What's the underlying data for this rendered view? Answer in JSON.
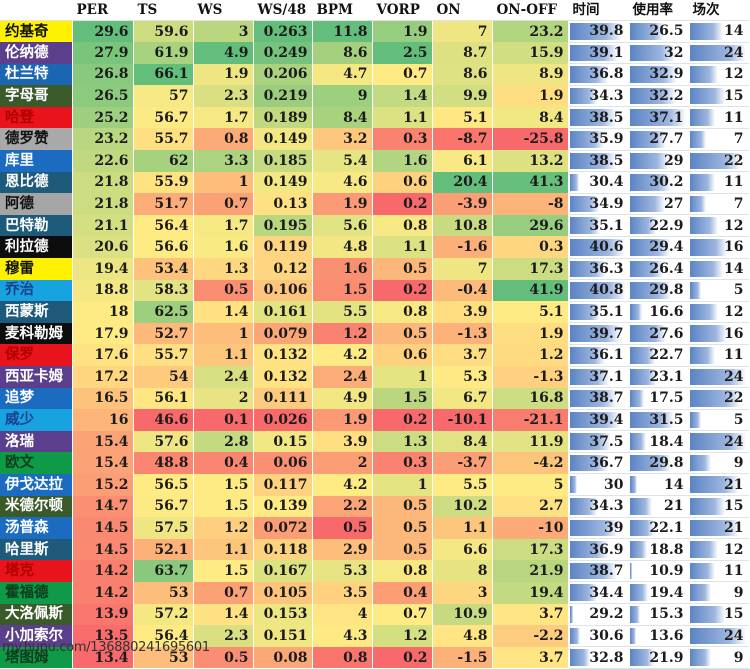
{
  "chart_data": {
    "type": "table",
    "title": "",
    "columns": [
      "",
      "PER",
      "TS",
      "WS",
      "WS/48",
      "BPM",
      "VORP",
      "ON",
      "ON-OFF",
      "时间",
      "使用率",
      "场次"
    ],
    "heatmap_columns": [
      "PER",
      "TS",
      "WS",
      "WS/48",
      "BPM",
      "VORP",
      "ON",
      "ON-OFF"
    ],
    "databar_columns": [
      "时间",
      "使用率",
      "场次"
    ],
    "rows": [
      {
        "name": "约基奇",
        "name_bg": "#fff200",
        "name_fg": "#111111",
        "PER": 29.6,
        "TS": 59.6,
        "WS": 3,
        "WS48": 0.263,
        "BPM": 11.8,
        "VORP": 1.9,
        "ON": 7,
        "ONOFF": 23.2,
        "MIN": 39.8,
        "USG": 26.5,
        "G": 14
      },
      {
        "name": "伦纳德",
        "name_bg": "#5b3f8c",
        "name_fg": "#ffffff",
        "PER": 27.9,
        "TS": 61.9,
        "WS": 4.9,
        "WS48": 0.249,
        "BPM": 8.6,
        "VORP": 2.5,
        "ON": 8.7,
        "ONOFF": 15.9,
        "MIN": 39.1,
        "USG": 32,
        "G": 24
      },
      {
        "name": "杜兰特",
        "name_bg": "#1a66b3",
        "name_fg": "#ffffff",
        "PER": 26.8,
        "TS": 66.1,
        "WS": 1.9,
        "WS48": 0.206,
        "BPM": 4.7,
        "VORP": 0.7,
        "ON": 8.6,
        "ONOFF": 8.9,
        "MIN": 36.8,
        "USG": 32.9,
        "G": 12
      },
      {
        "name": "字母哥",
        "name_bg": "#3a5a2a",
        "name_fg": "#ffffff",
        "PER": 26.5,
        "TS": 57,
        "WS": 2.3,
        "WS48": 0.219,
        "BPM": 9,
        "VORP": 1.4,
        "ON": 9.9,
        "ONOFF": 1.9,
        "MIN": 34.3,
        "USG": 32.2,
        "G": 15
      },
      {
        "name": "哈登",
        "name_bg": "#e8131b",
        "name_fg": "#b00000",
        "PER": 25.2,
        "TS": 56.7,
        "WS": 1.7,
        "WS48": 0.189,
        "BPM": 8.4,
        "VORP": 1.1,
        "ON": 5.1,
        "ONOFF": 8.4,
        "MIN": 38.5,
        "USG": 37.1,
        "G": 11
      },
      {
        "name": "德罗赞",
        "name_bg": "#a9a9a9",
        "name_fg": "#111111",
        "PER": 23.2,
        "TS": 55.7,
        "WS": 0.8,
        "WS48": 0.149,
        "BPM": 3.2,
        "VORP": 0.3,
        "ON": -8.7,
        "ONOFF": -25.8,
        "MIN": 35.9,
        "USG": 27.7,
        "G": 7
      },
      {
        "name": "库里",
        "name_bg": "#1b6cc0",
        "name_fg": "#ffffff",
        "PER": 22.6,
        "TS": 62,
        "WS": 3.3,
        "WS48": 0.185,
        "BPM": 5.4,
        "VORP": 1.6,
        "ON": 6.1,
        "ONOFF": 13.2,
        "MIN": 38.5,
        "USG": 29,
        "G": 22
      },
      {
        "name": "恩比德",
        "name_bg": "#1e5a7a",
        "name_fg": "#ffffff",
        "PER": 21.8,
        "TS": 55.9,
        "WS": 1,
        "WS48": 0.149,
        "BPM": 4.6,
        "VORP": 0.6,
        "ON": 20.4,
        "ONOFF": 41.3,
        "MIN": 30.4,
        "USG": 30.2,
        "G": 11
      },
      {
        "name": "阿德",
        "name_bg": "#a5a5a5",
        "name_fg": "#111111",
        "PER": 21.8,
        "TS": 51.7,
        "WS": 0.7,
        "WS48": 0.13,
        "BPM": 1.9,
        "VORP": 0.2,
        "ON": -3.9,
        "ONOFF": -8,
        "MIN": 34.9,
        "USG": 27,
        "G": 7
      },
      {
        "name": "巴特勒",
        "name_bg": "#1e5a7a",
        "name_fg": "#ffffff",
        "PER": 21.1,
        "TS": 56.4,
        "WS": 1.7,
        "WS48": 0.195,
        "BPM": 5.6,
        "VORP": 0.8,
        "ON": 10.8,
        "ONOFF": 29.6,
        "MIN": 35.1,
        "USG": 22.9,
        "G": 12
      },
      {
        "name": "利拉德",
        "name_bg": "#0d0d0d",
        "name_fg": "#ffffff",
        "PER": 20.6,
        "TS": 56.6,
        "WS": 1.6,
        "WS48": 0.119,
        "BPM": 4.8,
        "VORP": 1.1,
        "ON": -1.6,
        "ONOFF": 0.3,
        "MIN": 40.6,
        "USG": 29.4,
        "G": 16
      },
      {
        "name": "穆雷",
        "name_bg": "#fff200",
        "name_fg": "#111111",
        "PER": 19.4,
        "TS": 53.4,
        "WS": 1.3,
        "WS48": 0.12,
        "BPM": 1.6,
        "VORP": 0.5,
        "ON": 7,
        "ONOFF": 17.3,
        "MIN": 36.3,
        "USG": 26.4,
        "G": 14
      },
      {
        "name": "乔治",
        "name_bg": "#17a3e0",
        "name_fg": "#1d3f8f",
        "PER": 18.8,
        "TS": 58.3,
        "WS": 0.5,
        "WS48": 0.106,
        "BPM": 1.5,
        "VORP": 0.2,
        "ON": -0.4,
        "ONOFF": 41.9,
        "MIN": 40.8,
        "USG": 29.8,
        "G": 5
      },
      {
        "name": "西蒙斯",
        "name_bg": "#1e5a7a",
        "name_fg": "#ffffff",
        "PER": 18,
        "TS": 62.5,
        "WS": 1.4,
        "WS48": 0.161,
        "BPM": 5.5,
        "VORP": 0.8,
        "ON": 3.9,
        "ONOFF": 5.1,
        "MIN": 35.1,
        "USG": 16.6,
        "G": 12
      },
      {
        "name": "麦科勒姆",
        "name_bg": "#0d0d0d",
        "name_fg": "#ffffff",
        "PER": 17.9,
        "TS": 52.7,
        "WS": 1,
        "WS48": 0.079,
        "BPM": 1.2,
        "VORP": 0.5,
        "ON": -1.3,
        "ONOFF": 1.9,
        "MIN": 39.7,
        "USG": 27.6,
        "G": 16
      },
      {
        "name": "保罗",
        "name_bg": "#e8131b",
        "name_fg": "#b00000",
        "PER": 17.6,
        "TS": 55.7,
        "WS": 1.1,
        "WS48": 0.132,
        "BPM": 4.2,
        "VORP": 0.6,
        "ON": 3.7,
        "ONOFF": 1.2,
        "MIN": 36.1,
        "USG": 22.7,
        "G": 11
      },
      {
        "name": "西亚卡姆",
        "name_bg": "#5b3f8c",
        "name_fg": "#ffffff",
        "PER": 17.2,
        "TS": 54,
        "WS": 2.4,
        "WS48": 0.132,
        "BPM": 2.4,
        "VORP": 1,
        "ON": 5.3,
        "ONOFF": -1.3,
        "MIN": 37.1,
        "USG": 23.1,
        "G": 24
      },
      {
        "name": "追梦",
        "name_bg": "#1b6cc0",
        "name_fg": "#ffffff",
        "PER": 16.5,
        "TS": 56.1,
        "WS": 2,
        "WS48": 0.111,
        "BPM": 4.9,
        "VORP": 1.5,
        "ON": 6.7,
        "ONOFF": 16.8,
        "MIN": 38.7,
        "USG": 17.5,
        "G": 22
      },
      {
        "name": "威少",
        "name_bg": "#17a3e0",
        "name_fg": "#1d3f8f",
        "PER": 16,
        "TS": 46.6,
        "WS": 0.1,
        "WS48": 0.026,
        "BPM": 1.9,
        "VORP": 0.2,
        "ON": -10.1,
        "ONOFF": -21.1,
        "MIN": 39.4,
        "USG": 31.5,
        "G": 5
      },
      {
        "name": "洛瑞",
        "name_bg": "#5b3f8c",
        "name_fg": "#ffffff",
        "PER": 15.4,
        "TS": 57.6,
        "WS": 2.8,
        "WS48": 0.15,
        "BPM": 3.9,
        "VORP": 1.3,
        "ON": 8.4,
        "ONOFF": 11.9,
        "MIN": 37.5,
        "USG": 18.4,
        "G": 24
      },
      {
        "name": "欧文",
        "name_bg": "#0f9a48",
        "name_fg": "#0b3d1c",
        "PER": 15.4,
        "TS": 48.8,
        "WS": 0.4,
        "WS48": 0.06,
        "BPM": 2,
        "VORP": 0.3,
        "ON": -3.7,
        "ONOFF": -4.2,
        "MIN": 36.7,
        "USG": 29.8,
        "G": 9
      },
      {
        "name": "伊戈达拉",
        "name_bg": "#1b6cc0",
        "name_fg": "#ffffff",
        "PER": 15.2,
        "TS": 56.5,
        "WS": 1.5,
        "WS48": 0.117,
        "BPM": 4.2,
        "VORP": 1,
        "ON": 5.5,
        "ONOFF": 5,
        "MIN": 30,
        "USG": 14,
        "G": 21
      },
      {
        "name": "米德尔顿",
        "name_bg": "#3a5a2a",
        "name_fg": "#ffffff",
        "PER": 14.7,
        "TS": 56.7,
        "WS": 1.5,
        "WS48": 0.139,
        "BPM": 2.2,
        "VORP": 0.5,
        "ON": 10.2,
        "ONOFF": 2.7,
        "MIN": 34.3,
        "USG": 21,
        "G": 15
      },
      {
        "name": "汤普森",
        "name_bg": "#1b6cc0",
        "name_fg": "#ffffff",
        "PER": 14.5,
        "TS": 57.5,
        "WS": 1.2,
        "WS48": 0.072,
        "BPM": 0.5,
        "VORP": 0.5,
        "ON": 1.1,
        "ONOFF": -10,
        "MIN": 39,
        "USG": 22.1,
        "G": 21
      },
      {
        "name": "哈里斯",
        "name_bg": "#1e5a7a",
        "name_fg": "#ffffff",
        "PER": 14.5,
        "TS": 52.1,
        "WS": 1.1,
        "WS48": 0.118,
        "BPM": 2.9,
        "VORP": 0.5,
        "ON": 6.6,
        "ONOFF": 17.3,
        "MIN": 36.9,
        "USG": 18.8,
        "G": 12
      },
      {
        "name": "塔克",
        "name_bg": "#e8131b",
        "name_fg": "#b00000",
        "PER": 14.2,
        "TS": 63.7,
        "WS": 1.5,
        "WS48": 0.167,
        "BPM": 5.3,
        "VORP": 0.8,
        "ON": 8,
        "ONOFF": 21.9,
        "MIN": 38.7,
        "USG": 10.9,
        "G": 11
      },
      {
        "name": "霍福德",
        "name_bg": "#0f9a48",
        "name_fg": "#0b3d1c",
        "PER": 14.2,
        "TS": 53,
        "WS": 0.7,
        "WS48": 0.105,
        "BPM": 3.5,
        "VORP": 0.4,
        "ON": 3,
        "ONOFF": 19.4,
        "MIN": 34.4,
        "USG": 19.4,
        "G": 9
      },
      {
        "name": "大洛佩斯",
        "name_bg": "#3a5a2a",
        "name_fg": "#ffffff",
        "PER": 13.9,
        "TS": 57.2,
        "WS": 1.4,
        "WS48": 0.153,
        "BPM": 4,
        "VORP": 0.7,
        "ON": 10.9,
        "ONOFF": 3.7,
        "MIN": 29.2,
        "USG": 15.3,
        "G": 15
      },
      {
        "name": "小加索尔",
        "name_bg": "#5b3f8c",
        "name_fg": "#ffffff",
        "PER": 13.5,
        "TS": 56.4,
        "WS": 2.3,
        "WS48": 0.151,
        "BPM": 4.3,
        "VORP": 1.2,
        "ON": 4.8,
        "ONOFF": -2.2,
        "MIN": 30.6,
        "USG": 13.6,
        "G": 24
      },
      {
        "name": "塔图姆",
        "name_bg": "#0f9a48",
        "name_fg": "#0b3d1c",
        "PER": 13.4,
        "TS": 53,
        "WS": 0.5,
        "WS48": 0.08,
        "BPM": 0.8,
        "VORP": 0.2,
        "ON": -1.5,
        "ONOFF": 3.7,
        "MIN": 32.8,
        "USG": 21.9,
        "G": 9
      }
    ],
    "color_scale": {
      "low": "#f8696b",
      "mid": "#ffeb84",
      "high": "#63be7b"
    },
    "databar_color": "#5b84c4"
  },
  "footer": {
    "watermark": "my.hupu.com/136880241695601"
  }
}
